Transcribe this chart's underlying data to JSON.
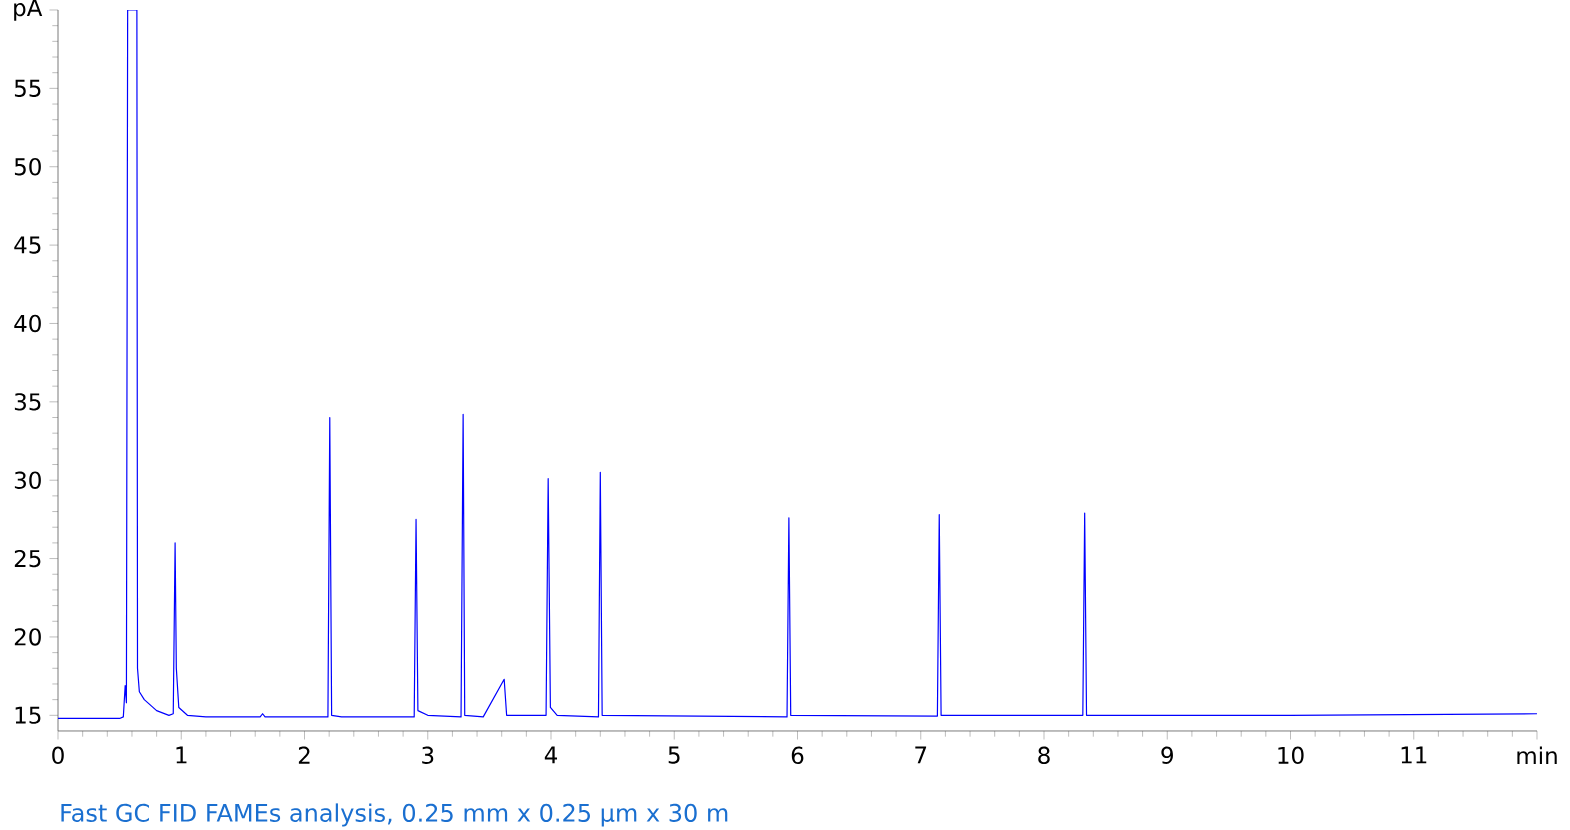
{
  "chart_data": {
    "type": "line",
    "x": [
      0,
      0.5,
      0.53,
      0.545,
      0.555,
      0.565,
      0.64,
      0.645,
      0.66,
      0.7,
      0.8,
      0.9,
      0.935,
      0.95,
      0.96,
      0.98,
      1.05,
      1.2,
      1.64,
      1.66,
      1.68,
      2.19,
      2.205,
      2.22,
      2.3,
      2.89,
      2.905,
      2.92,
      3.0,
      3.27,
      3.287,
      3.3,
      3.45,
      3.62,
      3.64,
      3.96,
      3.977,
      3.995,
      4.05,
      4.385,
      4.4,
      4.415,
      5.915,
      5.93,
      5.945,
      7.135,
      7.15,
      7.165,
      8.315,
      8.33,
      8.345,
      10,
      11,
      12
    ],
    "series": [
      {
        "color": "#0000ff",
        "values": [
          14.8,
          14.8,
          14.9,
          16.9,
          15.8,
          60,
          60,
          18,
          16.5,
          16,
          15.3,
          15.0,
          15.1,
          26,
          18,
          15.5,
          15.0,
          14.9,
          14.9,
          15.1,
          14.9,
          14.9,
          34,
          15.0,
          14.9,
          14.9,
          27.5,
          15.3,
          15.0,
          14.9,
          34.2,
          15.0,
          14.9,
          17.3,
          15.0,
          15.0,
          30.1,
          15.5,
          15.0,
          14.9,
          30.5,
          15.0,
          14.9,
          27.6,
          15.0,
          14.95,
          27.8,
          15.0,
          15.0,
          27.9,
          15.0,
          15.0,
          15.05,
          15.1
        ]
      }
    ],
    "xlim": [
      0,
      12
    ],
    "ylim": [
      14,
      60
    ],
    "xticks": [
      0,
      1,
      2,
      3,
      4,
      5,
      6,
      7,
      8,
      9,
      10,
      11,
      {
        "value": 12,
        "label": "min"
      }
    ],
    "yticks": [
      15,
      20,
      25,
      30,
      35,
      40,
      45,
      50,
      55,
      {
        "value": 60,
        "label": "pA"
      }
    ],
    "annotations": [
      "Fast GC FID FAMEs analysis, 0.25 mm x 0.25 µm x 30 m"
    ]
  }
}
